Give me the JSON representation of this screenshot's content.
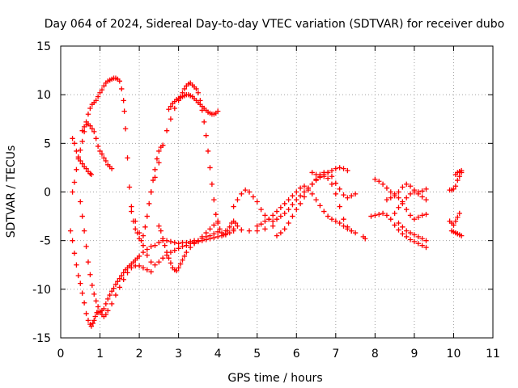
{
  "chart_data": {
    "type": "scatter",
    "title": "Day 064 of 2024, Sidereal Day-to-day VTEC variation (SDTVAR) for receiver dubo",
    "xlabel": "GPS time / hours",
    "ylabel": "SDTVAR / TECUs",
    "xlim": [
      0,
      11
    ],
    "ylim": [
      -15,
      15
    ],
    "xticks": [
      "0",
      "1",
      "2",
      "3",
      "4",
      "5",
      "6",
      "7",
      "8",
      "9",
      "10",
      "11"
    ],
    "yticks": [
      "-15",
      "-10",
      "-5",
      "0",
      "5",
      "10",
      "15"
    ],
    "grid": true,
    "legend": "none",
    "marker": "plus",
    "marker_color": "#ff0000",
    "series": [
      {
        "x": [
          0.25,
          0.3,
          0.35,
          0.4,
          0.45,
          0.5,
          0.55,
          0.6,
          0.65,
          0.7,
          0.75,
          0.78,
          0.82,
          0.85,
          0.88,
          0.92,
          0.95,
          1.0,
          1.05,
          1.1,
          1.15,
          1.2,
          1.25,
          1.3,
          1.35,
          1.4,
          1.45,
          1.5,
          1.55,
          1.6,
          1.65,
          1.7,
          1.75,
          1.8,
          1.85,
          1.9,
          1.95,
          2.0,
          2.1,
          2.2,
          2.3,
          2.4,
          2.5,
          2.6,
          2.7,
          2.8,
          2.9,
          3.0,
          3.1,
          3.2,
          3.3,
          3.4,
          3.5,
          3.6,
          3.7,
          3.8,
          3.9,
          4.0,
          4.2,
          4.4,
          4.6,
          4.8,
          5.0,
          5.2,
          5.4
        ],
        "y": [
          -4.0,
          -5.0,
          -6.3,
          -7.5,
          -8.6,
          -9.4,
          -10.4,
          -11.4,
          -12.5,
          -13.2,
          -13.6,
          -13.8,
          -13.5,
          -13.2,
          -12.8,
          -12.4,
          -12.4,
          -12.4,
          -12.2,
          -12.0,
          -11.5,
          -11.0,
          -10.6,
          -10.2,
          -9.9,
          -9.5,
          -9.2,
          -8.9,
          -8.6,
          -8.3,
          -8.0,
          -7.8,
          -7.6,
          -7.4,
          -7.2,
          -7.0,
          -6.8,
          -6.6,
          -6.2,
          -5.9,
          -5.6,
          -5.5,
          -5.2,
          -5.0,
          -5.0,
          -5.1,
          -5.2,
          -5.3,
          -5.2,
          -5.2,
          -5.1,
          -5.0,
          -5.0,
          -4.8,
          -4.6,
          -4.5,
          -4.3,
          -4.1,
          -4.0,
          -3.8,
          -3.9,
          -4.0,
          -4.0,
          -3.8,
          -3.5
        ]
      },
      {
        "x": [
          0.3,
          0.35,
          0.4,
          0.45,
          0.5,
          0.55,
          0.6,
          0.65,
          0.7,
          0.75,
          0.8,
          0.85,
          0.9,
          0.95,
          1.0,
          1.05,
          1.1,
          1.15,
          1.2,
          1.25,
          1.3,
          1.35,
          1.4,
          1.45,
          1.5,
          1.55,
          1.6,
          1.62,
          1.65,
          1.7,
          1.75,
          1.8,
          1.85,
          1.9,
          1.95,
          2.0,
          2.05,
          2.1,
          2.15,
          2.2,
          2.25,
          2.3,
          2.35,
          2.4,
          2.45,
          2.5,
          2.55,
          2.6
        ],
        "y": [
          0.0,
          1.0,
          2.3,
          3.4,
          4.3,
          5.2,
          6.2,
          7.2,
          8.0,
          8.6,
          9.0,
          9.2,
          9.4,
          9.8,
          10.2,
          10.5,
          10.9,
          11.2,
          11.4,
          11.5,
          11.6,
          11.7,
          11.7,
          11.6,
          11.4,
          10.6,
          9.4,
          8.3,
          6.5,
          3.5,
          0.5,
          -1.5,
          -3.0,
          -3.8,
          -4.2,
          -4.8,
          -5.0,
          -4.5,
          -3.6,
          -2.5,
          -1.2,
          0.0,
          1.2,
          2.3,
          3.4,
          4.2,
          4.6,
          4.8
        ]
      },
      {
        "x": [
          0.55,
          0.6,
          0.65,
          0.7,
          0.75,
          0.8,
          0.85,
          0.9,
          0.95,
          1.0,
          1.05,
          1.1,
          1.15,
          1.2,
          1.25,
          1.3
        ],
        "y": [
          6.3,
          6.7,
          6.9,
          7.0,
          6.8,
          6.5,
          6.2,
          5.5,
          4.7,
          4.2,
          3.9,
          3.5,
          3.2,
          2.8,
          2.6,
          2.4
        ]
      },
      {
        "x": [
          0.3,
          0.35,
          0.4,
          0.45,
          0.5,
          0.55,
          0.6,
          0.65,
          0.7,
          0.75,
          0.78
        ],
        "y": [
          5.5,
          5.0,
          4.2,
          3.6,
          3.2,
          2.9,
          2.6,
          2.4,
          2.1,
          1.9,
          1.8
        ]
      },
      {
        "x": [
          0.5,
          0.55,
          0.6,
          0.65,
          0.7,
          0.75,
          0.8,
          0.85,
          0.9,
          0.95,
          1.0,
          1.05,
          1.1,
          1.15,
          1.2,
          1.3,
          1.4,
          1.5,
          1.6,
          1.7,
          1.8,
          1.9,
          2.0,
          2.1,
          2.2,
          2.3
        ],
        "y": [
          -1.0,
          -2.5,
          -4.0,
          -5.6,
          -7.2,
          -8.5,
          -9.6,
          -10.5,
          -11.2,
          -11.8,
          -12.3,
          -12.6,
          -12.8,
          -12.6,
          -12.2,
          -11.5,
          -10.6,
          -9.8,
          -9.0,
          -8.3,
          -7.8,
          -7.6,
          -7.6,
          -7.8,
          -8.0,
          -8.2
        ]
      },
      {
        "x": [
          2.3,
          2.4,
          2.5,
          2.6,
          2.7,
          2.8,
          2.9,
          3.0,
          3.05,
          3.1,
          3.15,
          3.2,
          3.25,
          3.3,
          3.35,
          3.4,
          3.45,
          3.5,
          3.55,
          3.6,
          3.65,
          3.7,
          3.75,
          3.8,
          3.85,
          3.9,
          3.95,
          4.0,
          4.05,
          4.1,
          4.15,
          4.2,
          4.25,
          4.3,
          4.35,
          4.4,
          4.45,
          4.5
        ],
        "y": [
          0.0,
          1.5,
          3.0,
          4.8,
          6.3,
          7.5,
          8.6,
          9.4,
          9.8,
          10.2,
          10.6,
          10.9,
          11.1,
          11.2,
          11.0,
          10.8,
          10.6,
          10.2,
          9.4,
          8.4,
          7.2,
          5.8,
          4.2,
          2.5,
          0.8,
          -0.8,
          -2.3,
          -3.2,
          -3.8,
          -4.2,
          -4.4,
          -4.3,
          -4.0,
          -3.6,
          -3.2,
          -3.0,
          -3.2,
          -3.5
        ]
      },
      {
        "x": [
          2.75,
          2.8,
          2.85,
          2.9,
          2.95,
          3.0,
          3.05,
          3.1,
          3.15,
          3.2,
          3.25,
          3.3,
          3.35,
          3.4,
          3.45,
          3.5,
          3.55,
          3.6,
          3.65,
          3.7,
          3.75,
          3.8,
          3.85,
          3.9,
          3.95,
          4.0
        ],
        "y": [
          8.5,
          8.8,
          9.1,
          9.3,
          9.5,
          9.6,
          9.7,
          9.8,
          9.9,
          10.0,
          10.0,
          9.9,
          9.8,
          9.6,
          9.4,
          9.2,
          9.0,
          8.8,
          8.6,
          8.4,
          8.2,
          8.1,
          8.0,
          8.0,
          8.1,
          8.3
        ]
      },
      {
        "x": [
          2.5,
          2.55,
          2.6,
          2.65,
          2.7,
          2.75,
          2.8,
          2.85,
          2.9,
          2.95,
          3.0,
          3.05,
          3.1,
          3.15,
          3.2,
          3.3,
          3.4,
          3.5,
          3.6,
          3.7,
          3.8,
          3.9,
          4.0
        ],
        "y": [
          -3.5,
          -4.0,
          -4.8,
          -5.5,
          -6.2,
          -6.8,
          -7.3,
          -7.8,
          -8.0,
          -8.1,
          -7.8,
          -7.4,
          -7.0,
          -6.6,
          -6.2,
          -5.7,
          -5.3,
          -5.0,
          -4.6,
          -4.2,
          -3.8,
          -3.4,
          -3.0
        ]
      },
      {
        "x": [
          1.8,
          1.9,
          2.0,
          2.1,
          2.2,
          2.3,
          2.4,
          2.5,
          2.6,
          2.7,
          2.8,
          2.9,
          3.0,
          3.1,
          3.2,
          3.3,
          3.4,
          3.5,
          3.6,
          3.7,
          3.8,
          3.9,
          4.0,
          4.1,
          4.2,
          4.3,
          4.4
        ],
        "y": [
          -2.0,
          -3.0,
          -4.2,
          -5.5,
          -6.5,
          -7.2,
          -7.5,
          -7.2,
          -6.8,
          -6.5,
          -6.2,
          -6.0,
          -5.8,
          -5.6,
          -5.5,
          -5.3,
          -5.2,
          -5.1,
          -5.0,
          -4.9,
          -4.8,
          -4.7,
          -4.6,
          -4.5,
          -4.4,
          -4.2,
          -4.0
        ]
      },
      {
        "x": [
          4.4,
          4.5,
          4.6,
          4.7,
          4.8,
          4.9,
          5.0,
          5.1,
          5.2,
          5.3,
          5.4,
          5.5,
          5.6,
          5.7,
          5.8,
          5.9,
          6.0,
          6.1,
          6.2,
          6.3,
          6.4,
          6.5,
          6.6,
          6.7,
          6.8,
          6.9,
          7.0,
          7.1,
          7.2,
          7.3,
          7.4,
          7.5
        ],
        "y": [
          -1.5,
          -0.8,
          -0.2,
          0.2,
          0.0,
          -0.5,
          -1.0,
          -1.8,
          -2.4,
          -2.8,
          -3.0,
          -2.8,
          -2.5,
          -2.2,
          -1.8,
          -1.3,
          -0.8,
          -0.4,
          0.0,
          0.4,
          0.8,
          1.2,
          1.5,
          1.6,
          1.4,
          0.8,
          -0.2,
          -1.5,
          -2.8,
          -3.6,
          -4.0,
          -4.2
        ]
      },
      {
        "x": [
          5.0,
          5.1,
          5.2,
          5.3,
          5.4,
          5.5,
          5.6,
          5.7,
          5.8,
          5.9,
          6.0,
          6.1,
          6.2,
          6.3,
          6.4,
          6.5,
          6.6,
          6.7,
          6.8,
          6.9,
          7.0,
          7.1,
          7.2,
          7.3,
          7.4
        ],
        "y": [
          -3.5,
          -3.3,
          -3.0,
          -2.8,
          -2.4,
          -2.0,
          -1.6,
          -1.2,
          -0.8,
          -0.4,
          0.0,
          0.4,
          0.6,
          0.4,
          -0.2,
          -0.8,
          -1.4,
          -2.0,
          -2.5,
          -2.8,
          -3.0,
          -3.2,
          -3.5,
          -3.8,
          -4.0
        ]
      },
      {
        "x": [
          5.5,
          5.6,
          5.7,
          5.8,
          5.9,
          6.0,
          6.1,
          6.2,
          6.3,
          6.4,
          6.5,
          6.6,
          6.7,
          6.8,
          6.9,
          7.0,
          7.1,
          7.2,
          7.3,
          7.4,
          7.5
        ],
        "y": [
          -4.5,
          -4.2,
          -3.8,
          -3.2,
          -2.5,
          -1.8,
          -1.2,
          -0.5,
          0.2,
          0.8,
          1.3,
          1.8,
          2.0,
          2.0,
          1.6,
          0.9,
          0.3,
          -0.3,
          -0.6,
          -0.4,
          -0.2
        ]
      },
      {
        "x": [
          6.4,
          6.5,
          6.6,
          6.7,
          6.8,
          6.9,
          7.0,
          7.1,
          7.2,
          7.3
        ],
        "y": [
          2.0,
          1.8,
          1.6,
          1.8,
          2.0,
          2.2,
          2.4,
          2.5,
          2.4,
          2.2
        ]
      },
      {
        "x": [
          8.0,
          8.1,
          8.2,
          8.3,
          8.4,
          8.5,
          8.6,
          8.7,
          8.8,
          8.9,
          9.0,
          9.1,
          9.2,
          9.3
        ],
        "y": [
          1.3,
          1.1,
          0.8,
          0.4,
          0.0,
          -0.2,
          0.0,
          0.5,
          0.8,
          0.6,
          0.2,
          0.0,
          0.1,
          0.3
        ]
      },
      {
        "x": [
          7.9,
          8.0,
          8.1,
          8.2,
          8.3,
          8.4,
          8.5,
          8.6,
          8.7,
          8.8,
          8.9,
          9.0,
          9.1,
          9.2,
          9.3
        ],
        "y": [
          -2.5,
          -2.4,
          -2.3,
          -2.2,
          -2.4,
          -2.8,
          -3.4,
          -3.9,
          -4.3,
          -4.6,
          -4.9,
          -5.1,
          -5.3,
          -5.5,
          -5.7
        ]
      },
      {
        "x": [
          8.3,
          8.4,
          8.5,
          8.6,
          8.7,
          8.8,
          8.9,
          9.0,
          9.1,
          9.2,
          9.3
        ],
        "y": [
          -0.8,
          -0.6,
          -0.4,
          -0.6,
          -1.2,
          -1.8,
          -2.4,
          -2.8,
          -2.6,
          -2.4,
          -2.3
        ]
      },
      {
        "x": [
          8.5,
          8.6,
          8.7,
          8.8,
          8.9,
          9.0,
          9.1,
          9.2,
          9.3
        ],
        "y": [
          -2.2,
          -1.6,
          -1.0,
          -0.6,
          -0.2,
          0.0,
          -0.2,
          -0.5,
          -0.8
        ]
      },
      {
        "x": [
          8.6,
          8.7,
          8.8,
          8.9,
          9.0,
          9.1,
          9.2,
          9.3
        ],
        "y": [
          -3.2,
          -3.6,
          -4.0,
          -4.2,
          -4.4,
          -4.6,
          -4.8,
          -5.0
        ]
      },
      {
        "x": [
          7.7,
          7.75
        ],
        "y": [
          -4.6,
          -4.8
        ]
      },
      {
        "x": [
          9.9,
          9.95,
          10.0,
          10.05,
          10.1,
          10.15,
          10.2
        ],
        "y": [
          0.2,
          0.2,
          0.3,
          0.6,
          1.2,
          1.6,
          2.0
        ]
      },
      {
        "x": [
          9.95,
          10.0,
          10.05,
          10.1,
          10.15,
          10.2
        ],
        "y": [
          -4.0,
          -4.1,
          -4.2,
          -4.3,
          -4.4,
          -4.5
        ]
      },
      {
        "x": [
          9.9,
          9.95,
          10.0,
          10.05,
          10.1,
          10.15
        ],
        "y": [
          -3.0,
          -3.2,
          -3.4,
          -3.0,
          -2.6,
          -2.2
        ]
      },
      {
        "x": [
          10.05,
          10.1,
          10.15,
          10.2
        ],
        "y": [
          1.8,
          2.0,
          2.1,
          2.2
        ]
      }
    ]
  }
}
